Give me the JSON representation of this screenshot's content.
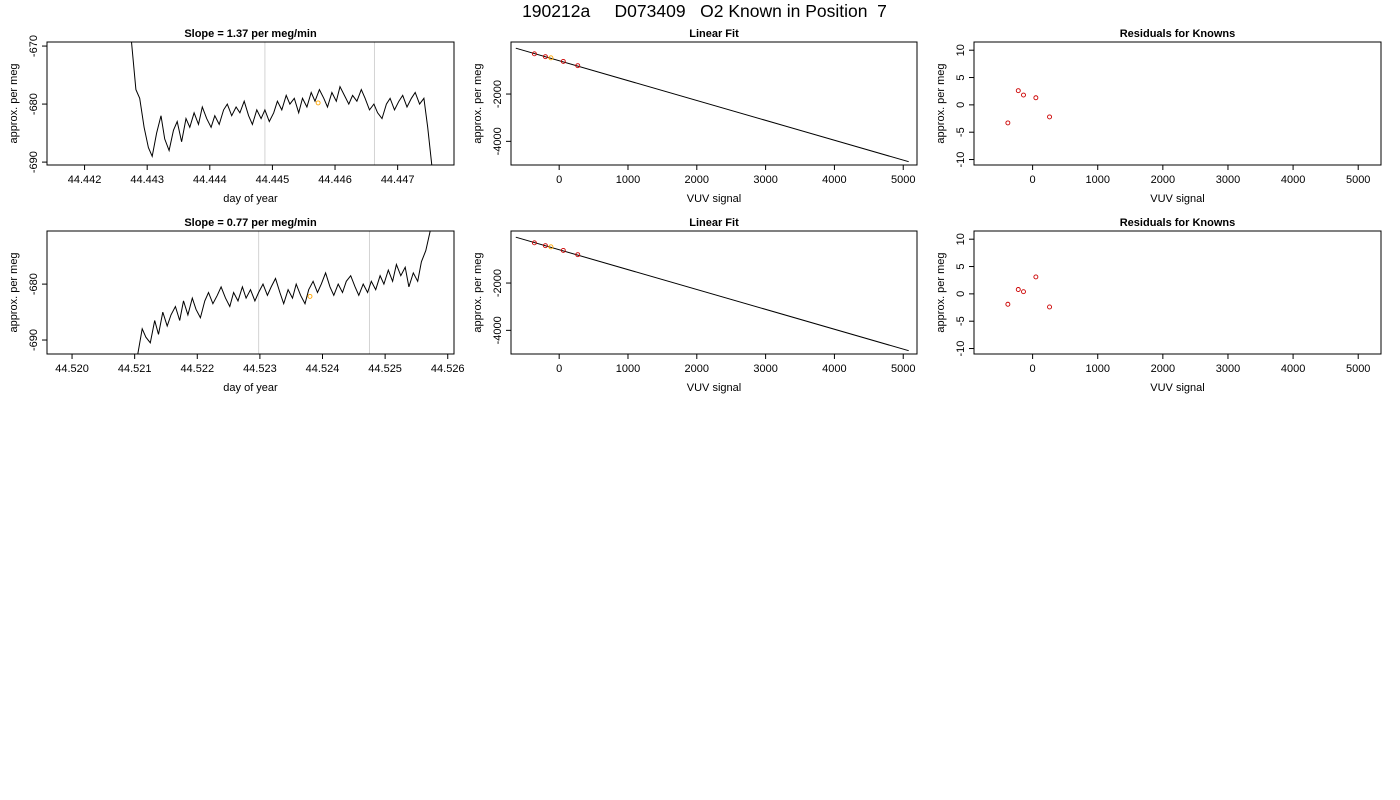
{
  "page_title": "190212a     D073409   O2 Known in Position  7",
  "chart_data": [
    {
      "id": "p1",
      "type": "line",
      "title": "Slope =  1.37  per meg/min",
      "xlabel": "day of year",
      "ylabel": "approx. per meg",
      "xlim": [
        44.4414,
        44.4479
      ],
      "ylim": [
        -690.5,
        -669.3
      ],
      "xticks": [
        44.442,
        44.443,
        44.444,
        44.445,
        44.446,
        44.447
      ],
      "xtick_labels": [
        "44.442",
        "44.443",
        "44.444",
        "44.445",
        "44.446",
        "44.447"
      ],
      "yticks": [
        -690,
        -680,
        -670
      ],
      "ytick_labels": [
        "-690",
        "-680",
        "-670"
      ],
      "vlines": [
        44.44488,
        44.44663
      ],
      "vline_color": "#d3d3d3",
      "series": [
        {
          "color": "#000000",
          "x": [
            44.44275,
            44.44282,
            44.44288,
            44.44295,
            44.44302,
            44.44308,
            44.44315,
            44.44322,
            44.44328,
            44.44335,
            44.44342,
            44.44348,
            44.44355,
            44.44362,
            44.44368,
            44.44375,
            44.44382,
            44.44388,
            44.44395,
            44.44402,
            44.44408,
            44.44415,
            44.44422,
            44.44428,
            44.44435,
            44.44442,
            44.44448,
            44.44455,
            44.44462,
            44.44468,
            44.44475,
            44.44482,
            44.44488,
            44.44495,
            44.44502,
            44.44508,
            44.44515,
            44.44522,
            44.44528,
            44.44535,
            44.44542,
            44.44548,
            44.44555,
            44.44562,
            44.44568,
            44.44575,
            44.44582,
            44.44588,
            44.44595,
            44.44602,
            44.44608,
            44.44615,
            44.44622,
            44.44628,
            44.44635,
            44.44642,
            44.44648,
            44.44655,
            44.44662,
            44.44668,
            44.44675,
            44.44682,
            44.44688,
            44.44695,
            44.44702,
            44.44708,
            44.44715,
            44.44722,
            44.44728,
            44.44735,
            44.44742,
            44.44748,
            44.44755
          ],
          "y": [
            -669.3,
            -677.5,
            -679.0,
            -684.0,
            -687.5,
            -689.0,
            -685.0,
            -682.0,
            -686.0,
            -688.0,
            -684.5,
            -683.0,
            -686.5,
            -682.5,
            -684.0,
            -681.5,
            -683.5,
            -680.5,
            -682.5,
            -684.0,
            -682.0,
            -683.5,
            -681.0,
            -680.0,
            -682.0,
            -680.5,
            -681.5,
            -679.5,
            -682.0,
            -683.5,
            -681.0,
            -682.5,
            -681.0,
            -683.0,
            -681.5,
            -679.5,
            -681.0,
            -678.5,
            -680.0,
            -679.0,
            -681.5,
            -679.0,
            -680.5,
            -678.0,
            -679.5,
            -677.5,
            -679.0,
            -680.5,
            -678.0,
            -679.5,
            -677.0,
            -678.5,
            -680.0,
            -678.5,
            -679.5,
            -677.5,
            -679.0,
            -681.0,
            -680.0,
            -681.5,
            -682.5,
            -680.0,
            -679.0,
            -681.0,
            -679.5,
            -678.5,
            -680.5,
            -679.0,
            -678.0,
            -680.0,
            -679.0,
            -684.0,
            -691.0
          ]
        }
      ],
      "points": [
        {
          "x": 44.44573,
          "y": -679.8,
          "color": "#ffa500"
        }
      ]
    },
    {
      "id": "p2",
      "type": "line",
      "title": "Linear Fit",
      "xlabel": "VUV signal",
      "ylabel": "approx. per meg",
      "xlim": [
        -700,
        5200
      ],
      "ylim": [
        -5000,
        200
      ],
      "xticks": [
        0,
        1000,
        2000,
        3000,
        4000,
        5000
      ],
      "xtick_labels": [
        "0",
        "1000",
        "2000",
        "3000",
        "4000",
        "5000"
      ],
      "yticks": [
        -4000,
        -2000
      ],
      "ytick_labels": [
        "-4000",
        "-2000"
      ],
      "series": [
        {
          "color": "#000000",
          "x": [
            -630,
            5080
          ],
          "y": [
            -60,
            -4860
          ]
        }
      ],
      "points": [
        {
          "x": -360,
          "y": -300,
          "color": "#cc0000"
        },
        {
          "x": -200,
          "y": -420,
          "color": "#cc0000"
        },
        {
          "x": -120,
          "y": -470,
          "color": "#ffa500"
        },
        {
          "x": 60,
          "y": -620,
          "color": "#cc0000"
        },
        {
          "x": 270,
          "y": -800,
          "color": "#cc0000"
        }
      ]
    },
    {
      "id": "p3",
      "type": "scatter",
      "title": "Residuals for Knowns",
      "xlabel": "VUV signal",
      "ylabel": "approx. per meg",
      "xlim": [
        -900,
        5350
      ],
      "ylim": [
        -11,
        11.5
      ],
      "xticks": [
        0,
        1000,
        2000,
        3000,
        4000,
        5000
      ],
      "xtick_labels": [
        "0",
        "1000",
        "2000",
        "3000",
        "4000",
        "5000"
      ],
      "yticks": [
        -10,
        -5,
        0,
        5,
        10
      ],
      "ytick_labels": [
        "-10",
        "-5",
        "0",
        "5",
        "10"
      ],
      "points": [
        {
          "x": -380,
          "y": -3.3,
          "color": "#cc0000"
        },
        {
          "x": -220,
          "y": 2.6,
          "color": "#cc0000"
        },
        {
          "x": -140,
          "y": 1.8,
          "color": "#cc0000"
        },
        {
          "x": 50,
          "y": 1.3,
          "color": "#cc0000"
        },
        {
          "x": 260,
          "y": -2.2,
          "color": "#cc0000"
        }
      ]
    },
    {
      "id": "p4",
      "type": "line",
      "title": "Slope =  0.77  per meg/min",
      "xlabel": "day of year",
      "ylabel": "approx. per meg",
      "xlim": [
        44.5196,
        44.5261
      ],
      "ylim": [
        -692.5,
        -670.5
      ],
      "xticks": [
        44.52,
        44.521,
        44.522,
        44.523,
        44.524,
        44.525,
        44.526
      ],
      "xtick_labels": [
        "44.520",
        "44.521",
        "44.522",
        "44.523",
        "44.524",
        "44.525",
        "44.526"
      ],
      "yticks": [
        -690,
        -680
      ],
      "ytick_labels": [
        "-690",
        "-680"
      ],
      "vlines": [
        44.52298,
        44.52475
      ],
      "vline_color": "#d3d3d3",
      "series": [
        {
          "color": "#000000",
          "x": [
            44.52105,
            44.52112,
            44.52118,
            44.52125,
            44.52132,
            44.52138,
            44.52145,
            44.52152,
            44.52158,
            44.52165,
            44.52172,
            44.52178,
            44.52185,
            44.52192,
            44.52198,
            44.52205,
            44.52212,
            44.52218,
            44.52225,
            44.52232,
            44.52238,
            44.52245,
            44.52252,
            44.52258,
            44.52265,
            44.52272,
            44.52278,
            44.52285,
            44.52292,
            44.52298,
            44.52305,
            44.52312,
            44.52318,
            44.52325,
            44.52332,
            44.52338,
            44.52345,
            44.52352,
            44.52358,
            44.52365,
            44.52372,
            44.52378,
            44.52385,
            44.52392,
            44.52398,
            44.52405,
            44.52412,
            44.52418,
            44.52425,
            44.52432,
            44.52438,
            44.52445,
            44.52452,
            44.52458,
            44.52465,
            44.52472,
            44.52478,
            44.52485,
            44.52492,
            44.52498,
            44.52505,
            44.52512,
            44.52518,
            44.52525,
            44.52532,
            44.52538,
            44.52545,
            44.52552,
            44.52558,
            44.52565,
            44.52572
          ],
          "y": [
            -692.5,
            -688.0,
            -689.5,
            -690.5,
            -686.5,
            -689.0,
            -685.0,
            -687.5,
            -685.5,
            -684.0,
            -686.5,
            -683.0,
            -685.5,
            -682.5,
            -684.5,
            -686.0,
            -683.0,
            -681.5,
            -683.5,
            -682.0,
            -680.5,
            -682.5,
            -684.0,
            -681.5,
            -683.0,
            -680.5,
            -682.5,
            -681.0,
            -683.0,
            -681.5,
            -680.0,
            -682.0,
            -680.5,
            -679.0,
            -681.5,
            -683.5,
            -681.0,
            -682.5,
            -680.0,
            -682.0,
            -683.5,
            -681.0,
            -679.5,
            -681.5,
            -680.0,
            -678.0,
            -680.5,
            -682.0,
            -680.0,
            -681.5,
            -679.5,
            -678.5,
            -680.5,
            -682.0,
            -680.0,
            -681.5,
            -679.5,
            -681.0,
            -678.5,
            -680.0,
            -677.5,
            -679.5,
            -676.5,
            -678.5,
            -677.0,
            -680.5,
            -678.0,
            -679.5,
            -676.0,
            -674.0,
            -670.5
          ]
        }
      ],
      "points": [
        {
          "x": 44.5238,
          "y": -682.2,
          "color": "#ffa500"
        }
      ]
    },
    {
      "id": "p5",
      "type": "line",
      "title": "Linear Fit",
      "xlabel": "VUV signal",
      "ylabel": "approx. per meg",
      "xlim": [
        -700,
        5200
      ],
      "ylim": [
        -5000,
        200
      ],
      "xticks": [
        0,
        1000,
        2000,
        3000,
        4000,
        5000
      ],
      "xtick_labels": [
        "0",
        "1000",
        "2000",
        "3000",
        "4000",
        "5000"
      ],
      "yticks": [
        -4000,
        -2000
      ],
      "ytick_labels": [
        "-4000",
        "-2000"
      ],
      "series": [
        {
          "color": "#000000",
          "x": [
            -630,
            5080
          ],
          "y": [
            -60,
            -4860
          ]
        }
      ],
      "points": [
        {
          "x": -360,
          "y": -300,
          "color": "#cc0000"
        },
        {
          "x": -200,
          "y": -420,
          "color": "#cc0000"
        },
        {
          "x": -120,
          "y": -470,
          "color": "#ffa500"
        },
        {
          "x": 60,
          "y": -620,
          "color": "#cc0000"
        },
        {
          "x": 270,
          "y": -800,
          "color": "#cc0000"
        }
      ]
    },
    {
      "id": "p6",
      "type": "scatter",
      "title": "Residuals for Knowns",
      "xlabel": "VUV signal",
      "ylabel": "approx. per meg",
      "xlim": [
        -900,
        5350
      ],
      "ylim": [
        -11,
        11.5
      ],
      "xticks": [
        0,
        1000,
        2000,
        3000,
        4000,
        5000
      ],
      "xtick_labels": [
        "0",
        "1000",
        "2000",
        "3000",
        "4000",
        "5000"
      ],
      "yticks": [
        -10,
        -5,
        0,
        5,
        10
      ],
      "ytick_labels": [
        "-10",
        "-5",
        "0",
        "5",
        "10"
      ],
      "points": [
        {
          "x": -380,
          "y": -1.9,
          "color": "#cc0000"
        },
        {
          "x": -220,
          "y": 0.8,
          "color": "#cc0000"
        },
        {
          "x": -140,
          "y": 0.4,
          "color": "#cc0000"
        },
        {
          "x": 50,
          "y": 3.1,
          "color": "#cc0000"
        },
        {
          "x": 260,
          "y": -2.4,
          "color": "#cc0000"
        }
      ]
    }
  ]
}
